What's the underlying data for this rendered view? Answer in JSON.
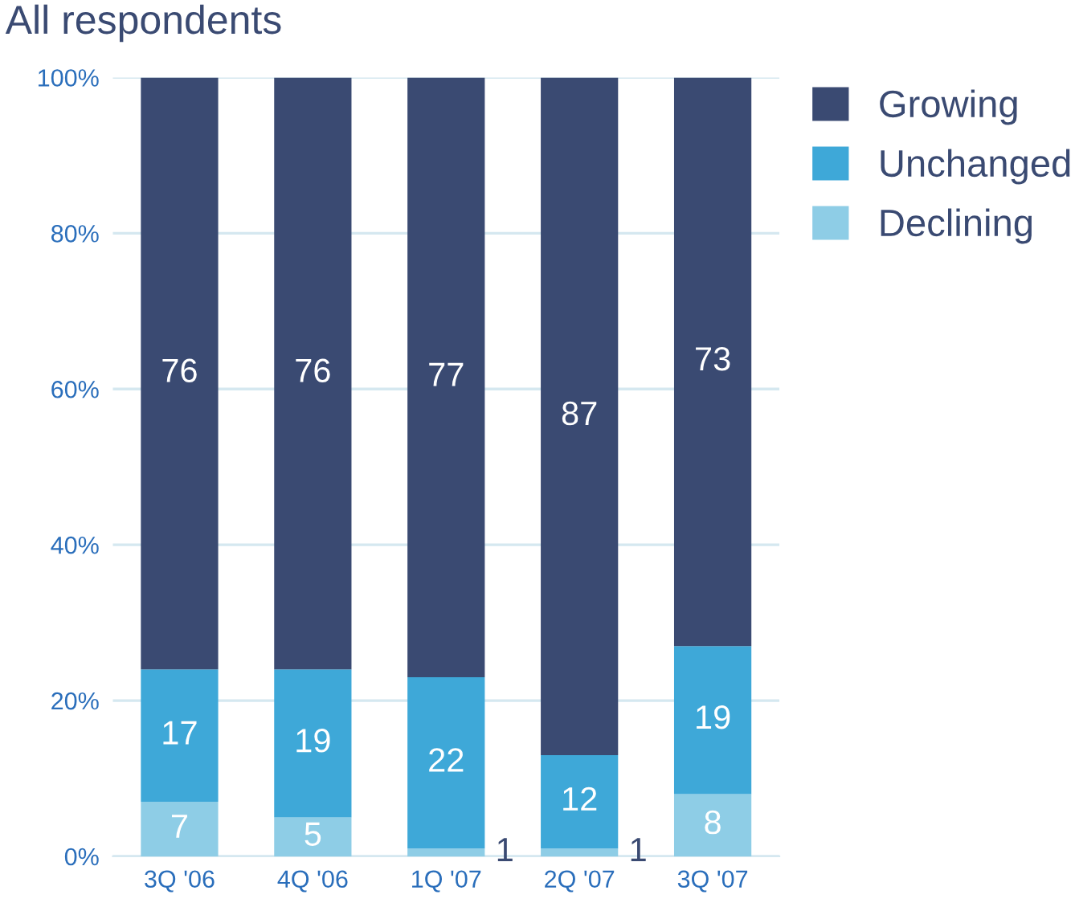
{
  "chart_data": {
    "type": "bar",
    "title": "All respondents",
    "stacked": true,
    "categories": [
      "3Q '06",
      "4Q '06",
      "1Q '07",
      "2Q '07",
      "3Q '07"
    ],
    "series": [
      {
        "name": "Declining",
        "color": "#8ecde6",
        "values": [
          7,
          5,
          1,
          1,
          8
        ]
      },
      {
        "name": "Unchanged",
        "color": "#3ea8d8",
        "values": [
          17,
          19,
          22,
          12,
          19
        ]
      },
      {
        "name": "Growing",
        "color": "#3a4a72",
        "values": [
          76,
          76,
          77,
          87,
          73
        ]
      }
    ],
    "ylim": [
      0,
      100
    ],
    "yticks": [
      {
        "value": 0,
        "label": "0%"
      },
      {
        "value": 20,
        "label": "20%"
      },
      {
        "value": 40,
        "label": "40%"
      },
      {
        "value": 60,
        "label": "60%"
      },
      {
        "value": 80,
        "label": "80%"
      },
      {
        "value": 100,
        "label": "100%"
      }
    ],
    "grid": "y",
    "legend": "top right",
    "data_labels": true
  }
}
